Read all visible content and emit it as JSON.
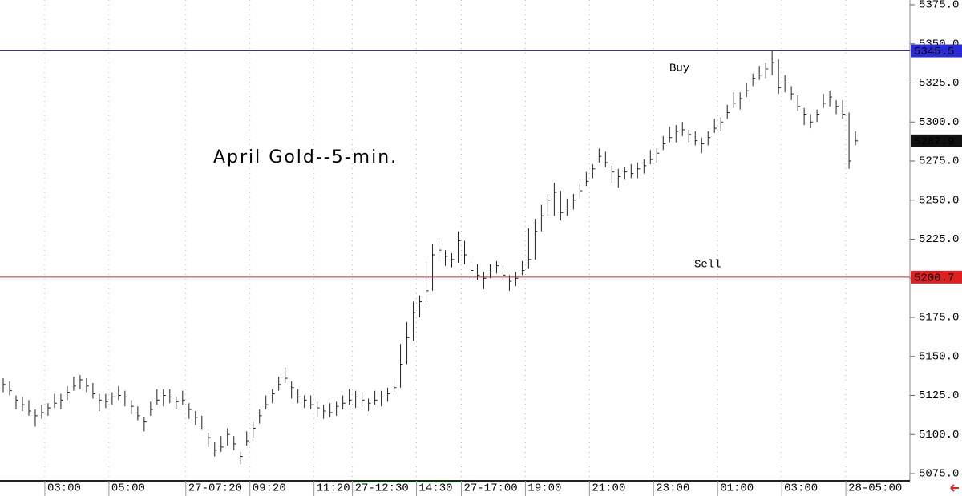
{
  "chart_data": {
    "type": "ohlc",
    "title": "April Gold--5-min.",
    "color": "#222222",
    "xlim": [
      0,
      142
    ],
    "xticks": [
      {
        "value": 7,
        "label": "03:00"
      },
      {
        "value": 17,
        "label": "05:00"
      },
      {
        "value": 29,
        "label": "27-07:20"
      },
      {
        "value": 39,
        "label": "09:20"
      },
      {
        "value": 49,
        "label": "11:20"
      },
      {
        "value": 55,
        "label": "27-12:30"
      },
      {
        "value": 65,
        "label": "14:30"
      },
      {
        "value": 72,
        "label": "27-17:00"
      },
      {
        "value": 82,
        "label": "19:00"
      },
      {
        "value": 92,
        "label": "21:00"
      },
      {
        "value": 102,
        "label": "23:00"
      },
      {
        "value": 112,
        "label": "01:00"
      },
      {
        "value": 122,
        "label": "03:00"
      },
      {
        "value": 132,
        "label": "28-05:00"
      }
    ],
    "ylim": [
      5075,
      5375
    ],
    "yticks": [
      {
        "value": 5075,
        "label": "5075.0"
      },
      {
        "value": 5100,
        "label": "5100.0"
      },
      {
        "value": 5125,
        "label": "5125.0"
      },
      {
        "value": 5150,
        "label": "5150.0"
      },
      {
        "value": 5175,
        "label": "5175.0"
      },
      {
        "value": 5200,
        "label": "5200.0"
      },
      {
        "value": 5225,
        "label": "5225.0"
      },
      {
        "value": 5250,
        "label": "5250.0"
      },
      {
        "value": 5275,
        "label": "5275.0"
      },
      {
        "value": 5300,
        "label": "5300.0"
      },
      {
        "value": 5325,
        "label": "5325.0"
      },
      {
        "value": 5350,
        "label": "5350.0"
      },
      {
        "value": 5375,
        "label": "5375.0"
      }
    ],
    "grid": "x",
    "high": [
      5136,
      5134,
      5125,
      5124,
      5122,
      5116,
      5119,
      5120,
      5126,
      5126,
      5131,
      5137,
      5138,
      5136,
      5133,
      5126,
      5126,
      5127,
      5131,
      5128,
      5122,
      5118,
      5111,
      5121,
      5129,
      5129,
      5129,
      5124,
      5128,
      5120,
      5115,
      5112,
      5101,
      5095,
      5099,
      5104,
      5099,
      5089,
      5102,
      5108,
      5116,
      5125,
      5129,
      5137,
      5143,
      5134,
      5129,
      5125,
      5125,
      5121,
      5119,
      5120,
      5121,
      5125,
      5129,
      5128,
      5127,
      5123,
      5128,
      5128,
      5130,
      5136,
      5158,
      5172,
      5185,
      5189,
      5210,
      5222,
      5224,
      5218,
      5216,
      5230,
      5224,
      5210,
      5209,
      5204,
      5209,
      5211,
      5208,
      5202,
      5204,
      5211,
      5232,
      5238,
      5247,
      5254,
      5261,
      5256,
      5251,
      5254,
      5260,
      5268,
      5273,
      5283,
      5281,
      5272,
      5270,
      5271,
      5273,
      5274,
      5276,
      5282,
      5283,
      5291,
      5297,
      5298,
      5300,
      5295,
      5294,
      5290,
      5294,
      5302,
      5303,
      5311,
      5319,
      5319,
      5325,
      5331,
      5336,
      5338,
      5345.5,
      5340,
      5330,
      5323,
      5317,
      5309,
      5305,
      5308,
      5318,
      5320,
      5314,
      5314,
      5306,
      5294
    ],
    "low": [
      5127,
      5125,
      5116,
      5115,
      5112,
      5105,
      5110,
      5112,
      5117,
      5116,
      5122,
      5128,
      5129,
      5127,
      5123,
      5115,
      5117,
      5119,
      5122,
      5118,
      5113,
      5109,
      5102,
      5112,
      5119,
      5118,
      5120,
      5116,
      5119,
      5110,
      5106,
      5103,
      5092,
      5086,
      5089,
      5093,
      5090,
      5081,
      5093,
      5098,
      5107,
      5116,
      5120,
      5128,
      5133,
      5123,
      5120,
      5117,
      5116,
      5111,
      5110,
      5111,
      5112,
      5116,
      5119,
      5117,
      5118,
      5115,
      5119,
      5118,
      5121,
      5127,
      5130,
      5145,
      5160,
      5175,
      5185,
      5192,
      5210,
      5208,
      5207,
      5210,
      5209,
      5201,
      5199,
      5193,
      5200,
      5203,
      5199,
      5192,
      5195,
      5202,
      5206,
      5212,
      5230,
      5240,
      5240,
      5237,
      5240,
      5244,
      5251,
      5259,
      5264,
      5274,
      5271,
      5261,
      5258,
      5263,
      5264,
      5264,
      5267,
      5273,
      5274,
      5282,
      5287,
      5287,
      5291,
      5287,
      5285,
      5280,
      5285,
      5293,
      5294,
      5302,
      5309,
      5308,
      5316,
      5323,
      5327,
      5328,
      5330,
      5318,
      5319,
      5314,
      5307,
      5298,
      5296,
      5300,
      5309,
      5310,
      5305,
      5302,
      5270,
      5285
    ],
    "close": [
      5132,
      5128,
      5122,
      5119,
      5115,
      5112,
      5114,
      5117,
      5120,
      5122,
      5127,
      5131,
      5135,
      5131,
      5126,
      5122,
      5121,
      5124,
      5125,
      5124,
      5118,
      5112,
      5108,
      5116,
      5122,
      5125,
      5124,
      5121,
      5122,
      5116,
      5111,
      5106,
      5098,
      5090,
      5092,
      5100,
      5094,
      5086,
      5096,
      5104,
      5112,
      5119,
      5126,
      5132,
      5136,
      5130,
      5124,
      5122,
      5119,
      5117,
      5115,
      5114,
      5118,
      5120,
      5122,
      5124,
      5122,
      5120,
      5122,
      5124,
      5126,
      5130,
      5145,
      5162,
      5178,
      5185,
      5192,
      5215,
      5218,
      5214,
      5212,
      5224,
      5215,
      5205,
      5202,
      5200,
      5204,
      5208,
      5202,
      5198,
      5200,
      5205,
      5212,
      5230,
      5240,
      5250,
      5255,
      5242,
      5245,
      5250,
      5256,
      5262,
      5270,
      5278,
      5274,
      5268,
      5265,
      5268,
      5267,
      5270,
      5272,
      5276,
      5280,
      5286,
      5290,
      5294,
      5295,
      5292,
      5288,
      5286,
      5290,
      5296,
      5300,
      5306,
      5312,
      5315,
      5320,
      5328,
      5330,
      5334,
      5338,
      5322,
      5325,
      5318,
      5310,
      5305,
      5300,
      5305,
      5312,
      5316,
      5310,
      5305,
      5275,
      5287.9
    ],
    "levels": [
      {
        "label": "Buy",
        "value": 5345.5,
        "color": "#2a2ad8"
      },
      {
        "label": "Sell",
        "value": 5200.7,
        "color": "#e02020"
      }
    ]
  }
}
